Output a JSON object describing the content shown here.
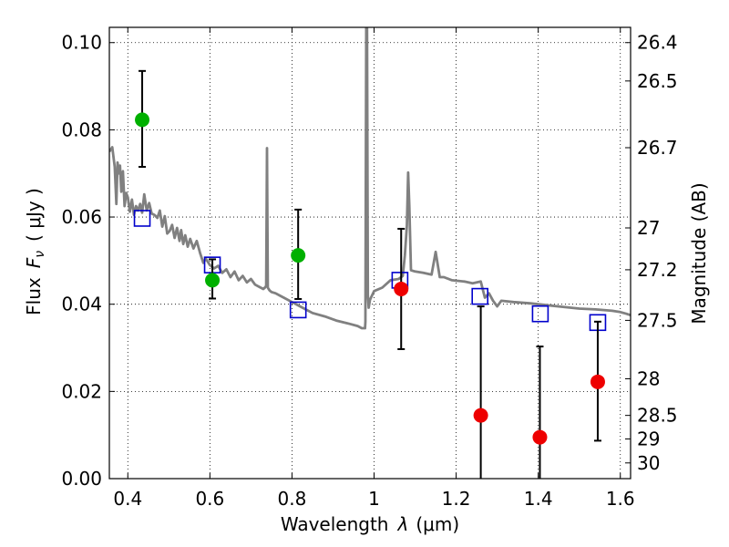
{
  "chart_data": {
    "type": "scatter",
    "xlabel": "Wavelength",
    "xlabel_symbol": "λ",
    "xlabel_unit": "(μm)",
    "ylabel": "Flux",
    "ylabel_symbol": "F",
    "ylabel_symbol_sub": "ν",
    "ylabel_unit": "( μJy )",
    "y2label": "Magnitude (AB)",
    "xlim": [
      0.355,
      1.625
    ],
    "ylim": [
      0.0,
      0.1035
    ],
    "x_ticks": [
      0.4,
      0.6,
      0.8,
      1.0,
      1.2,
      1.4,
      1.6
    ],
    "x_tick_labels": [
      "0.4",
      "0.6",
      "0.8",
      "1",
      "1.2",
      "1.4",
      "1.6"
    ],
    "y_ticks": [
      0.0,
      0.02,
      0.04,
      0.06,
      0.08,
      0.1
    ],
    "y_tick_labels": [
      "0.00",
      "0.02",
      "0.04",
      "0.06",
      "0.08",
      "0.10"
    ],
    "y2_ticks": [
      {
        "label": "26.4",
        "flux": 0.1
      },
      {
        "label": "26.5",
        "flux": 0.0912
      },
      {
        "label": "26.7",
        "flux": 0.0759
      },
      {
        "label": "27",
        "flux": 0.0575
      },
      {
        "label": "27.2",
        "flux": 0.0479
      },
      {
        "label": "27.5",
        "flux": 0.0363
      },
      {
        "label": "28",
        "flux": 0.0229
      },
      {
        "label": "28.5",
        "flux": 0.0145
      },
      {
        "label": "29",
        "flux": 0.0091
      },
      {
        "label": "30",
        "flux": 0.0036
      }
    ],
    "grid": true,
    "grid_style": "dotted",
    "series": [
      {
        "kind": "template-spectrum",
        "color": "#808080",
        "x": [
          0.355,
          0.362,
          0.368,
          0.372,
          0.375,
          0.378,
          0.381,
          0.384,
          0.388,
          0.392,
          0.396,
          0.4,
          0.405,
          0.41,
          0.415,
          0.42,
          0.425,
          0.43,
          0.435,
          0.44,
          0.446,
          0.452,
          0.458,
          0.465,
          0.472,
          0.478,
          0.484,
          0.49,
          0.496,
          0.502,
          0.508,
          0.514,
          0.52,
          0.526,
          0.53,
          0.535,
          0.54,
          0.546,
          0.552,
          0.56,
          0.568,
          0.576,
          0.584,
          0.59,
          0.6,
          0.61,
          0.62,
          0.63,
          0.64,
          0.65,
          0.66,
          0.67,
          0.68,
          0.69,
          0.7,
          0.71,
          0.72,
          0.73,
          0.734,
          0.737,
          0.739,
          0.741,
          0.745,
          0.75,
          0.76,
          0.77,
          0.78,
          0.8,
          0.82,
          0.85,
          0.88,
          0.91,
          0.94,
          0.96,
          0.97,
          0.975,
          0.978,
          0.979,
          0.981,
          0.983,
          0.985,
          0.987,
          0.99,
          1.0,
          1.02,
          1.04,
          1.06,
          1.07,
          1.075,
          1.08,
          1.083,
          1.086,
          1.09,
          1.1,
          1.12,
          1.14,
          1.15,
          1.16,
          1.17,
          1.19,
          1.22,
          1.24,
          1.26,
          1.27,
          1.28,
          1.29,
          1.3,
          1.31,
          1.34,
          1.38,
          1.42,
          1.46,
          1.5,
          1.54,
          1.58,
          1.6,
          1.615,
          1.625
        ],
        "y": [
          0.075,
          0.076,
          0.0715,
          0.063,
          0.0725,
          0.07,
          0.0718,
          0.0658,
          0.0705,
          0.0625,
          0.0655,
          0.0645,
          0.0612,
          0.064,
          0.0605,
          0.0625,
          0.0615,
          0.063,
          0.061,
          0.0652,
          0.0615,
          0.0632,
          0.0608,
          0.0605,
          0.0598,
          0.0615,
          0.0578,
          0.0602,
          0.0562,
          0.0568,
          0.0582,
          0.0552,
          0.0575,
          0.0545,
          0.057,
          0.0538,
          0.0558,
          0.0532,
          0.055,
          0.0528,
          0.0545,
          0.0518,
          0.0495,
          0.0505,
          0.049,
          0.0482,
          0.0488,
          0.0472,
          0.048,
          0.0462,
          0.0475,
          0.0455,
          0.0465,
          0.045,
          0.0458,
          0.0445,
          0.044,
          0.0435,
          0.0438,
          0.0442,
          0.0758,
          0.0438,
          0.0432,
          0.0428,
          0.0425,
          0.042,
          0.0415,
          0.0405,
          0.0395,
          0.038,
          0.0372,
          0.0362,
          0.0355,
          0.035,
          0.0345,
          0.0345,
          0.0345,
          0.036,
          0.1035,
          0.1035,
          0.042,
          0.0392,
          0.041,
          0.043,
          0.0438,
          0.0455,
          0.0458,
          0.0465,
          0.0512,
          0.058,
          0.0702,
          0.0625,
          0.0478,
          0.0475,
          0.0472,
          0.0468,
          0.052,
          0.0462,
          0.0462,
          0.0455,
          0.0452,
          0.0448,
          0.0452,
          0.0415,
          0.0425,
          0.0408,
          0.0395,
          0.0408,
          0.0405,
          0.0402,
          0.0398,
          0.0394,
          0.039,
          0.0388,
          0.0385,
          0.0382,
          0.0378,
          0.0375
        ]
      },
      {
        "kind": "model-photometry",
        "marker": "open-square",
        "color": "#0000cc",
        "x": [
          0.435,
          0.606,
          0.815,
          1.063,
          1.258,
          1.405,
          1.545
        ],
        "y": [
          0.0597,
          0.049,
          0.0387,
          0.0455,
          0.0418,
          0.0378,
          0.0358
        ]
      },
      {
        "kind": "detection",
        "marker": "filled-circle",
        "color": "#00b000",
        "x": [
          0.435,
          0.606,
          0.815
        ],
        "y": [
          0.0823,
          0.0455,
          0.0512
        ],
        "yerr_low": [
          0.0108,
          0.0042,
          0.01
        ],
        "yerr_high": [
          0.0112,
          0.0048,
          0.0105
        ]
      },
      {
        "kind": "detection",
        "marker": "filled-circle",
        "color": "#ee0000",
        "x": [
          1.066,
          1.26,
          1.404,
          1.545
        ],
        "y": [
          0.0435,
          0.0145,
          0.0095,
          0.0222
        ],
        "yerr_low": [
          0.0138,
          0.0145,
          0.0095,
          0.0135
        ],
        "yerr_high": [
          0.0138,
          0.025,
          0.0208,
          0.0138
        ]
      }
    ]
  }
}
